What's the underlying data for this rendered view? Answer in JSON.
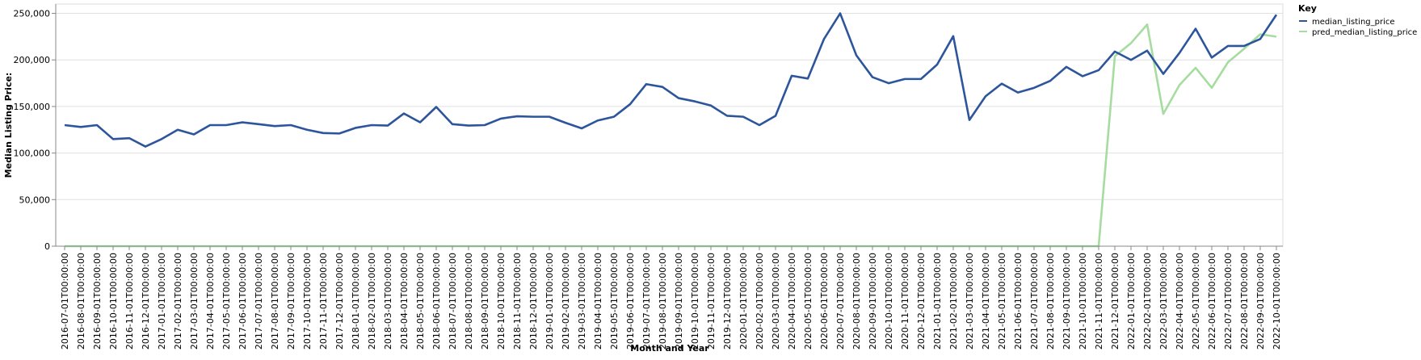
{
  "chart_data": {
    "type": "line",
    "xlabel": "Month and Year",
    "ylabel": "Median Listing Price:",
    "ylim": [
      0,
      260000
    ],
    "yticks": [
      "0",
      "50,000",
      "100,000",
      "150,000",
      "200,000",
      "250,000"
    ],
    "ytick_values": [
      0,
      50000,
      100000,
      150000,
      200000,
      250000
    ],
    "grid": "horizontal",
    "legend": {
      "title": "Key",
      "placement": "top-right"
    },
    "x": [
      "2016-07-01T00:00:00",
      "2016-08-01T00:00:00",
      "2016-09-01T00:00:00",
      "2016-10-01T00:00:00",
      "2016-11-01T00:00:00",
      "2016-12-01T00:00:00",
      "2017-01-01T00:00:00",
      "2017-02-01T00:00:00",
      "2017-03-01T00:00:00",
      "2017-04-01T00:00:00",
      "2017-05-01T00:00:00",
      "2017-06-01T00:00:00",
      "2017-07-01T00:00:00",
      "2017-08-01T00:00:00",
      "2017-09-01T00:00:00",
      "2017-10-01T00:00:00",
      "2017-11-01T00:00:00",
      "2017-12-01T00:00:00",
      "2018-01-01T00:00:00",
      "2018-02-01T00:00:00",
      "2018-03-01T00:00:00",
      "2018-04-01T00:00:00",
      "2018-05-01T00:00:00",
      "2018-06-01T00:00:00",
      "2018-07-01T00:00:00",
      "2018-08-01T00:00:00",
      "2018-09-01T00:00:00",
      "2018-10-01T00:00:00",
      "2018-11-01T00:00:00",
      "2018-12-01T00:00:00",
      "2019-01-01T00:00:00",
      "2019-02-01T00:00:00",
      "2019-03-01T00:00:00",
      "2019-04-01T00:00:00",
      "2019-05-01T00:00:00",
      "2019-06-01T00:00:00",
      "2019-07-01T00:00:00",
      "2019-08-01T00:00:00",
      "2019-09-01T00:00:00",
      "2019-10-01T00:00:00",
      "2019-11-01T00:00:00",
      "2019-12-01T00:00:00",
      "2020-01-01T00:00:00",
      "2020-02-01T00:00:00",
      "2020-03-01T00:00:00",
      "2020-04-01T00:00:00",
      "2020-05-01T00:00:00",
      "2020-06-01T00:00:00",
      "2020-07-01T00:00:00",
      "2020-08-01T00:00:00",
      "2020-09-01T00:00:00",
      "2020-10-01T00:00:00",
      "2020-11-01T00:00:00",
      "2020-12-01T00:00:00",
      "2021-01-01T00:00:00",
      "2021-02-01T00:00:00",
      "2021-03-01T00:00:00",
      "2021-04-01T00:00:00",
      "2021-05-01T00:00:00",
      "2021-06-01T00:00:00",
      "2021-07-01T00:00:00",
      "2021-08-01T00:00:00",
      "2021-09-01T00:00:00",
      "2021-10-01T00:00:00",
      "2021-11-01T00:00:00",
      "2021-12-01T00:00:00",
      "2022-01-01T00:00:00",
      "2022-02-01T00:00:00",
      "2022-03-01T00:00:00",
      "2022-04-01T00:00:00",
      "2022-05-01T00:00:00",
      "2022-06-01T00:00:00",
      "2022-07-01T00:00:00",
      "2022-08-01T00:00:00",
      "2022-09-01T00:00:00",
      "2022-10-01T00:00:00"
    ],
    "series": [
      {
        "name": "median_listing_price",
        "color": "#2c559c",
        "values": [
          130000,
          128000,
          130000,
          115000,
          116000,
          107000,
          115000,
          125000,
          120000,
          130000,
          130000,
          133000,
          131000,
          129000,
          130000,
          125000,
          121500,
          121000,
          127000,
          130000,
          129500,
          142500,
          133000,
          149500,
          131000,
          129500,
          130000,
          137000,
          139500,
          139000,
          139000,
          132500,
          126500,
          135000,
          139000,
          152500,
          174000,
          171000,
          159000,
          155500,
          151000,
          140000,
          139000,
          130000,
          140000,
          183000,
          180000,
          222500,
          250000,
          205000,
          181500,
          175000,
          179500,
          179500,
          195000,
          225500,
          135500,
          161000,
          174500,
          165000,
          170000,
          177500,
          192500,
          182500,
          189000,
          209000,
          200000,
          210000,
          185000,
          207500,
          233500,
          202500,
          215000,
          215000,
          222500,
          248500
        ]
      },
      {
        "name": "pred_median_listing_price",
        "color": "#a6dca0",
        "values": [
          0,
          0,
          0,
          0,
          0,
          0,
          0,
          0,
          0,
          0,
          0,
          0,
          0,
          0,
          0,
          0,
          0,
          0,
          0,
          0,
          0,
          0,
          0,
          0,
          0,
          0,
          0,
          0,
          0,
          0,
          0,
          0,
          0,
          0,
          0,
          0,
          0,
          0,
          0,
          0,
          0,
          0,
          0,
          0,
          0,
          0,
          0,
          0,
          0,
          0,
          0,
          0,
          0,
          0,
          0,
          0,
          0,
          0,
          0,
          0,
          0,
          0,
          0,
          0,
          0,
          204000,
          218000,
          238000,
          142000,
          173000,
          191500,
          170000,
          197500,
          212000,
          227500,
          225000
        ]
      }
    ]
  }
}
